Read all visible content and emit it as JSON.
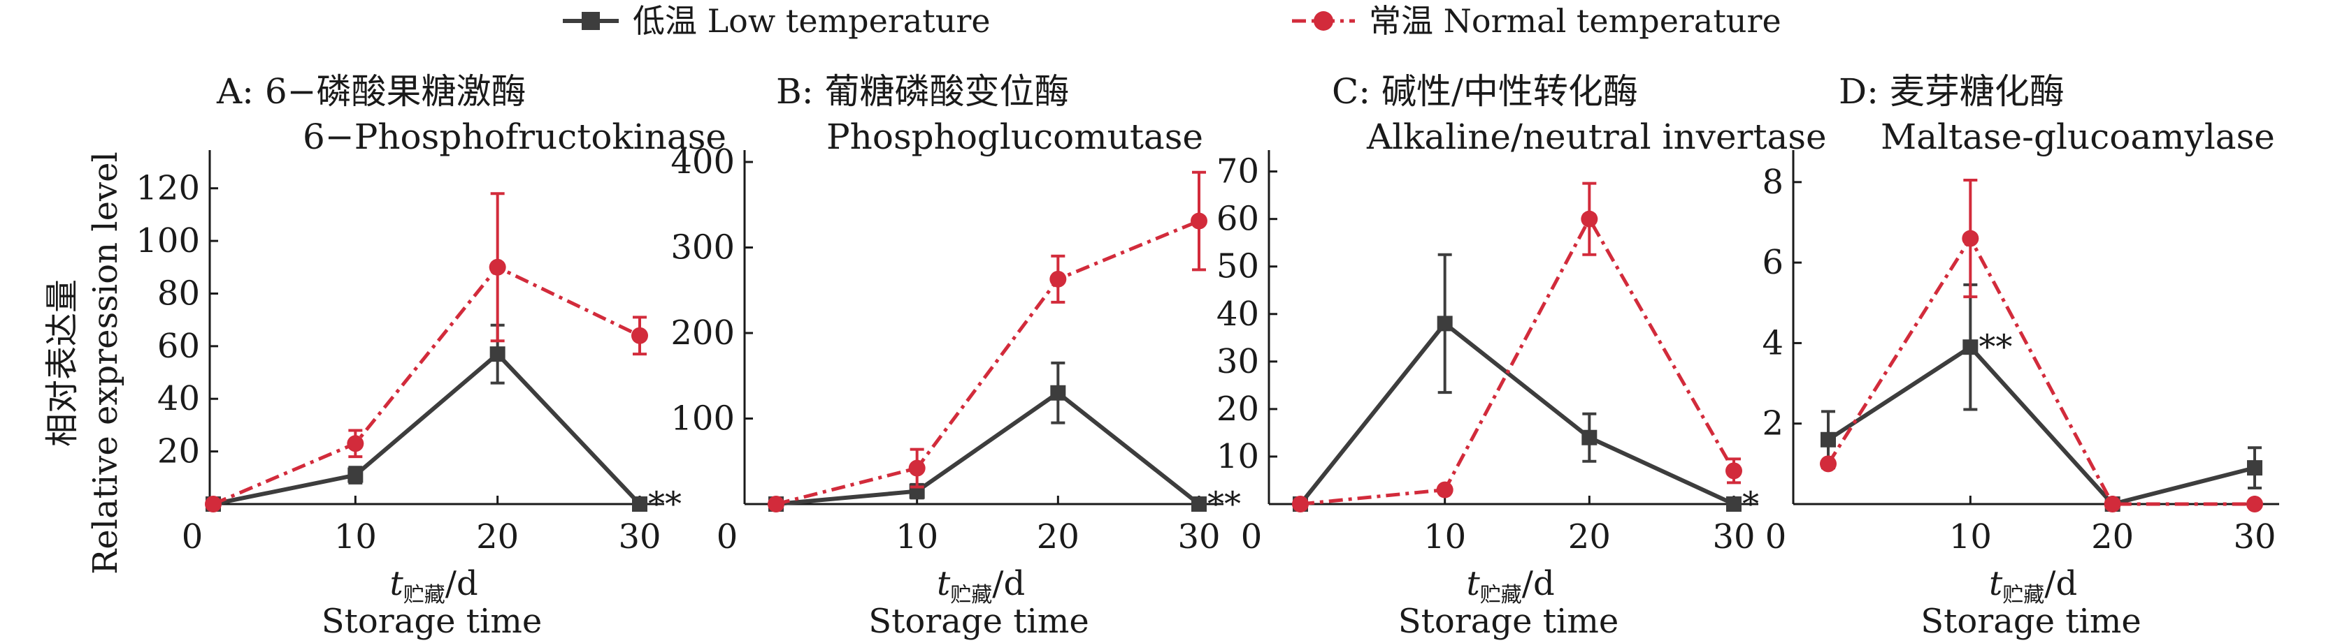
{
  "figure": {
    "y_label_cn": "相对表达量",
    "y_label_en": "Relative expression level",
    "x_label_var": "t",
    "x_label_sub": "贮藏",
    "x_label_unit": "/d",
    "x_label_en": "Storage time"
  },
  "legend": {
    "low": {
      "label": "低温 Low temperature",
      "color": "#3d3d3d"
    },
    "normal": {
      "label": "常温 Normal temperature",
      "color": "#d22b3b"
    }
  },
  "chart_data": [
    {
      "type": "line",
      "title_line1": "A: 6−磷酸果糖激酶",
      "title_line2": "6−Phosphofructokinase",
      "x": [
        0,
        10,
        20,
        30
      ],
      "xticks": [
        "0",
        "10",
        "20",
        "30"
      ],
      "ylim": [
        0,
        130
      ],
      "yticks": [
        20,
        40,
        60,
        80,
        100,
        120
      ],
      "ytick_labels": [
        "20",
        "40",
        "60",
        "80",
        "100",
        "120"
      ],
      "series": [
        {
          "name": "低温 Low temperature",
          "values": [
            0,
            11,
            57,
            0
          ],
          "errors": [
            0,
            3,
            11,
            0
          ]
        },
        {
          "name": "常温 Normal temperature",
          "values": [
            0,
            23,
            90,
            64
          ],
          "errors": [
            0,
            5,
            28,
            7
          ]
        }
      ],
      "significance": [
        {
          "x": 30,
          "label": "**"
        }
      ]
    },
    {
      "type": "line",
      "title_line1": "B: 葡糖磷酸变位酶",
      "title_line2": "Phosphoglucomutase",
      "x": [
        0,
        10,
        20,
        30
      ],
      "xticks": [
        "0",
        "10",
        "20",
        "30"
      ],
      "ylim": [
        0,
        400
      ],
      "yticks": [
        100,
        200,
        300,
        400
      ],
      "ytick_labels": [
        "100",
        "200",
        "300",
        "400"
      ],
      "series": [
        {
          "name": "低温 Low temperature",
          "values": [
            0,
            15,
            130,
            0
          ],
          "errors": [
            0,
            8,
            35,
            0
          ]
        },
        {
          "name": "常温 Normal temperature",
          "values": [
            0,
            42,
            263,
            331
          ],
          "errors": [
            0,
            22,
            27,
            57
          ]
        }
      ],
      "significance": [
        {
          "x": 30,
          "label": "**"
        }
      ]
    },
    {
      "type": "line",
      "title_line1": "C: 碱性/中性转化酶",
      "title_line2": "Alkaline/neutral invertase",
      "x": [
        0,
        10,
        20,
        30
      ],
      "xticks": [
        "0",
        "10",
        "20",
        "30"
      ],
      "ylim": [
        0,
        72
      ],
      "yticks": [
        10,
        20,
        30,
        40,
        50,
        60,
        70
      ],
      "ytick_labels": [
        "10",
        "20",
        "30",
        "40",
        "50",
        "60",
        "70"
      ],
      "series": [
        {
          "name": "低温 Low temperature",
          "values": [
            0,
            38,
            14,
            0
          ],
          "errors": [
            0,
            14.5,
            5,
            0
          ]
        },
        {
          "name": "常温 Normal temperature",
          "values": [
            0,
            3,
            60,
            7
          ],
          "errors": [
            0,
            0,
            7.5,
            2.5
          ]
        }
      ],
      "significance": [
        {
          "x": 30,
          "label": "*"
        }
      ]
    },
    {
      "type": "line",
      "title_line1": "D: 麦芽糖化酶",
      "title_line2": "Maltase-glucoamylase",
      "x": [
        0,
        10,
        20,
        30
      ],
      "xticks": [
        "0",
        "10",
        "20",
        "30"
      ],
      "ylim": [
        0,
        8.5
      ],
      "yticks": [
        2,
        4,
        6,
        8
      ],
      "ytick_labels": [
        "2",
        "4",
        "6",
        "8"
      ],
      "series": [
        {
          "name": "低温 Low temperature",
          "values": [
            1.6,
            3.9,
            0,
            0.9
          ],
          "errors": [
            0.7,
            1.55,
            0,
            0.5
          ]
        },
        {
          "name": "常温 Normal temperature",
          "values": [
            1.0,
            6.6,
            0,
            0
          ],
          "errors": [
            0,
            1.45,
            0,
            0
          ]
        }
      ],
      "significance": [
        {
          "x": 10,
          "label": "**"
        }
      ]
    }
  ]
}
